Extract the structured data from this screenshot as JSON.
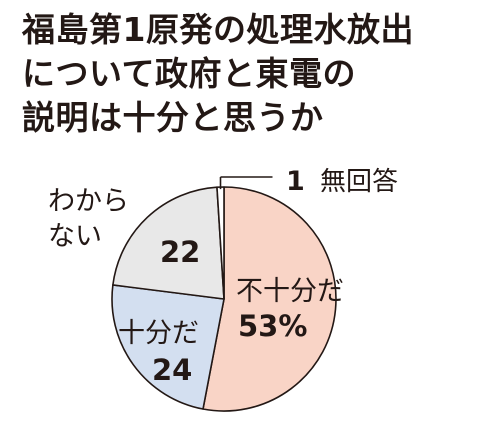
{
  "title_lines": [
    "福島第1原発の処理水放出",
    "について政府と東電の",
    "説明は十分と思うか"
  ],
  "chart_data": {
    "type": "pie",
    "title": "福島第1原発の処理水放出について政府と東電の説明は十分と思うか",
    "unit": "%",
    "slices": [
      {
        "label": "不十分だ",
        "value": 53,
        "value_text": "53%",
        "color": "#f9d4c6"
      },
      {
        "label": "十分だ",
        "value": 24,
        "value_text": "24",
        "color": "#d3dff0"
      },
      {
        "label": "わからない",
        "label_lines": [
          "わから",
          "ない"
        ],
        "value": 22,
        "value_text": "22",
        "color": "#e8e8e8"
      },
      {
        "label": "無回答",
        "value": 1,
        "value_text": "1",
        "color": "#ffffff"
      }
    ]
  }
}
